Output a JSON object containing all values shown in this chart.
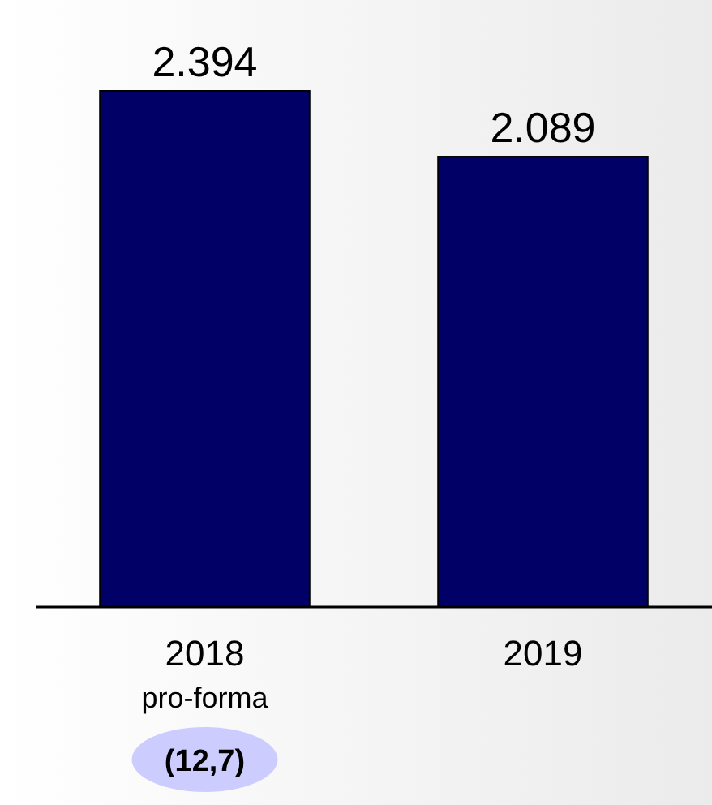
{
  "chart_data": {
    "type": "bar",
    "categories": [
      "2018\npro-forma",
      "2019"
    ],
    "values": [
      2.394,
      2.089
    ],
    "color": "#000066",
    "tick_labels": "x",
    "data_labels": true,
    "annotations": [
      "(12,7)"
    ]
  }
}
